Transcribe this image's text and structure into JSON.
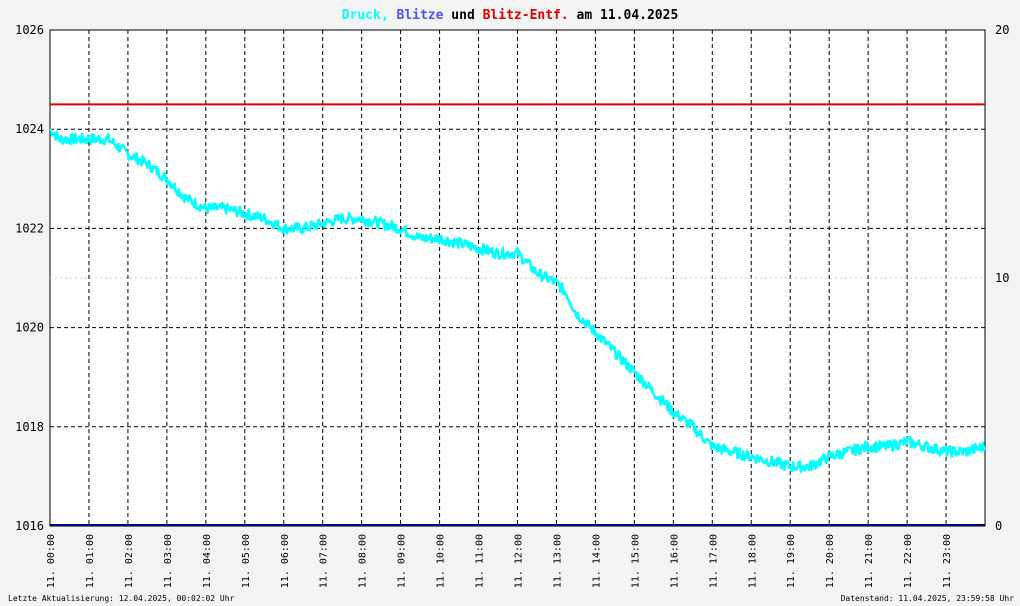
{
  "colors": {
    "druck": "#00ffff",
    "blitze": "#5050ff",
    "blitz_entf": "#dd0000",
    "axis_bottom": "#000080",
    "background": "#f4f4f4"
  },
  "title": {
    "part1": "Druck,",
    "part2": "Blitze",
    "part3": "und",
    "part4": "Blitz-Entf.",
    "part5": "am 11.04.2025"
  },
  "footer": {
    "left": "Letzte Aktualisierung: 12.04.2025, 00:02:02 Uhr",
    "right": "Datenstand: 11.04.2025, 23:59:58 Uhr"
  },
  "chart_data": {
    "type": "line",
    "y_left": {
      "min": 1016,
      "max": 1026,
      "ticks": [
        "1016",
        "1018",
        "1020",
        "1022",
        "1024",
        "1026"
      ]
    },
    "y_right": {
      "min": 0,
      "max": 20,
      "ticks": [
        "0",
        "10",
        "20"
      ]
    },
    "x_range_hours": [
      0,
      24
    ],
    "x_tick_labels": [
      "11. 00:00",
      "11. 01:00",
      "11. 02:00",
      "11. 03:00",
      "11. 04:00",
      "11. 05:00",
      "11. 06:00",
      "11. 07:00",
      "11. 08:00",
      "11. 09:00",
      "11. 10:00",
      "11. 11:00",
      "11. 12:00",
      "11. 13:00",
      "11. 14:00",
      "11. 15:00",
      "11. 16:00",
      "11. 17:00",
      "11. 18:00",
      "11. 19:00",
      "11. 20:00",
      "11. 21:00",
      "11. 22:00",
      "11. 23:00"
    ],
    "grid": true,
    "series": [
      {
        "name": "Druck",
        "axis": "left",
        "x": [
          0,
          0.25,
          0.5,
          1,
          1.5,
          2,
          2.5,
          3,
          3.25,
          3.5,
          4,
          4.5,
          5,
          5.5,
          6,
          6.5,
          7,
          7.5,
          8,
          8.5,
          9,
          9.5,
          10,
          10.5,
          11,
          11.5,
          12,
          12.25,
          12.5,
          13,
          13.25,
          13.5,
          14,
          14.5,
          15,
          15.5,
          16,
          16.5,
          17,
          17.5,
          18,
          18.5,
          19,
          19.25,
          19.5,
          20,
          20.5,
          21,
          21.5,
          22,
          22.5,
          23,
          23.5,
          24
        ],
        "values": [
          1024.0,
          1023.8,
          1023.8,
          1023.8,
          1023.8,
          1023.5,
          1023.3,
          1023.0,
          1022.8,
          1022.6,
          1022.4,
          1022.4,
          1022.3,
          1022.2,
          1022.0,
          1022.0,
          1022.1,
          1022.2,
          1022.2,
          1022.1,
          1022.0,
          1021.8,
          1021.8,
          1021.7,
          1021.6,
          1021.5,
          1021.5,
          1021.3,
          1021.1,
          1020.9,
          1020.7,
          1020.3,
          1019.9,
          1019.5,
          1019.1,
          1018.7,
          1018.3,
          1018.0,
          1017.6,
          1017.5,
          1017.4,
          1017.3,
          1017.2,
          1017.2,
          1017.2,
          1017.4,
          1017.5,
          1017.6,
          1017.6,
          1017.7,
          1017.6,
          1017.5,
          1017.5,
          1017.6
        ]
      },
      {
        "name": "Blitz-Entf.",
        "axis": "right",
        "x": [
          0,
          24
        ],
        "values": [
          17,
          17
        ]
      },
      {
        "name": "Blitze",
        "axis": "right",
        "x": [
          0,
          24
        ],
        "values": [
          0,
          0
        ]
      }
    ]
  }
}
